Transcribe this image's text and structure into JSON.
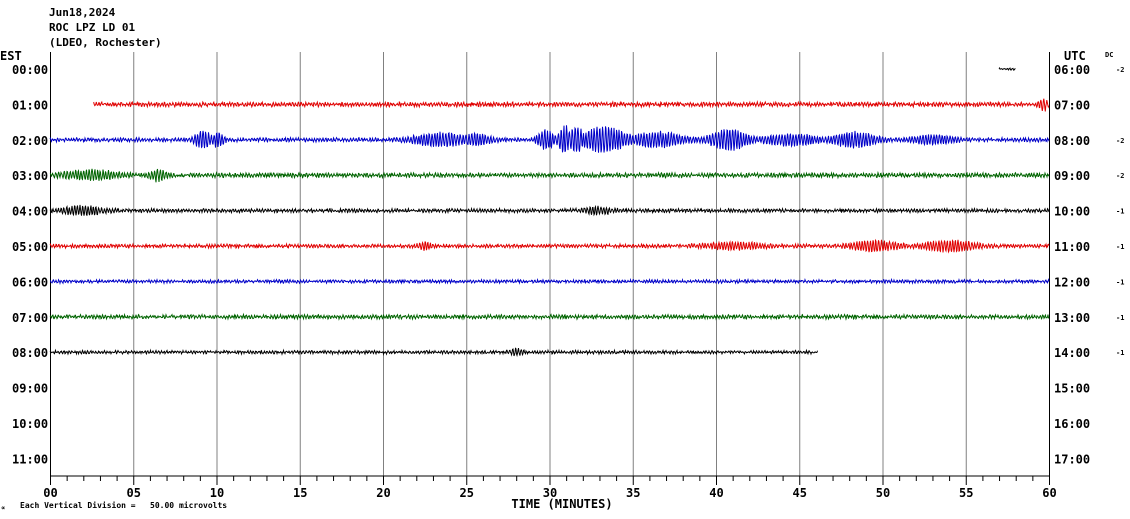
{
  "header": {
    "date": "Jun18,2024",
    "station": "ROC LPZ LD 01",
    "network": "(LDEO, Rochester)",
    "left_tz": "EST",
    "right_tz": "UTC",
    "dc_label": "DC"
  },
  "footer": {
    "xlabel": "TIME (MINUTES)",
    "scale_note": "Each Vertical Division =   50.00 microvolts",
    "corner_mark": "∝"
  },
  "colors": {
    "red": "#e00000",
    "blue": "#0000c8",
    "green": "#006400",
    "black": "#000000",
    "grid": "#808080"
  },
  "chart_data": {
    "type": "line",
    "title": "ROC LPZ LD 01",
    "xlabel": "TIME (MINUTES)",
    "ylabel": "",
    "xlim": [
      0,
      60
    ],
    "x_ticks": [
      "00",
      "05",
      "10",
      "15",
      "20",
      "25",
      "30",
      "35",
      "40",
      "45",
      "50",
      "55",
      "60"
    ],
    "rows": [
      {
        "est": "00:00",
        "utc": "06:00",
        "dc": "-2",
        "color": "black",
        "start": 57,
        "end": 58,
        "amp": 1.0,
        "noise": 0.6,
        "events": []
      },
      {
        "est": "01:00",
        "utc": "07:00",
        "dc": "",
        "color": "red",
        "start": 2.6,
        "end": 60,
        "amp": 2.2,
        "noise": 1.2,
        "events": [
          [
            59.7,
            0.3,
            5
          ]
        ]
      },
      {
        "est": "02:00",
        "utc": "08:00",
        "dc": "-2",
        "color": "blue",
        "start": 0,
        "end": 60,
        "amp": 2.0,
        "noise": 1.0,
        "events": [
          [
            9.2,
            0.6,
            8
          ],
          [
            10.1,
            0.4,
            7
          ],
          [
            23.5,
            2.0,
            6
          ],
          [
            25.6,
            1.0,
            5
          ],
          [
            29.8,
            0.6,
            9
          ],
          [
            30.9,
            0.4,
            14
          ],
          [
            31.6,
            0.6,
            12
          ],
          [
            33.3,
            1.6,
            12
          ],
          [
            36.5,
            1.8,
            7
          ],
          [
            40.8,
            1.3,
            10
          ],
          [
            44.5,
            2.0,
            5
          ],
          [
            48.3,
            1.5,
            7
          ],
          [
            53.0,
            1.5,
            4
          ]
        ]
      },
      {
        "est": "03:00",
        "utc": "09:00",
        "dc": "-2",
        "color": "green",
        "start": 0,
        "end": 60,
        "amp": 2.2,
        "noise": 1.2,
        "events": [
          [
            2.5,
            1.8,
            4
          ],
          [
            6.5,
            0.6,
            5
          ]
        ]
      },
      {
        "est": "04:00",
        "utc": "10:00",
        "dc": "-1",
        "color": "black",
        "start": 0,
        "end": 60,
        "amp": 1.8,
        "noise": 1.0,
        "events": [
          [
            2.0,
            1.5,
            4
          ],
          [
            32.9,
            1.0,
            3
          ]
        ]
      },
      {
        "est": "05:00",
        "utc": "11:00",
        "dc": "-1",
        "color": "red",
        "start": 0,
        "end": 60,
        "amp": 1.8,
        "noise": 1.0,
        "events": [
          [
            22.5,
            0.5,
            3
          ],
          [
            41.0,
            2.0,
            3
          ],
          [
            49.5,
            1.6,
            5
          ],
          [
            54.0,
            1.8,
            5
          ]
        ]
      },
      {
        "est": "06:00",
        "utc": "12:00",
        "dc": "-1",
        "color": "blue",
        "start": 0,
        "end": 60,
        "amp": 1.6,
        "noise": 0.9,
        "events": []
      },
      {
        "est": "07:00",
        "utc": "13:00",
        "dc": "-1",
        "color": "green",
        "start": 0,
        "end": 60,
        "amp": 2.0,
        "noise": 1.1,
        "events": []
      },
      {
        "est": "08:00",
        "utc": "14:00",
        "dc": "-1",
        "color": "black",
        "start": 0,
        "end": 46.1,
        "amp": 1.6,
        "noise": 0.9,
        "events": [
          [
            28.0,
            0.4,
            3
          ]
        ]
      },
      {
        "est": "09:00",
        "utc": "15:00",
        "dc": "",
        "color": "black",
        "start": 0,
        "end": 0,
        "amp": 0,
        "noise": 0,
        "events": []
      },
      {
        "est": "10:00",
        "utc": "16:00",
        "dc": "",
        "color": "black",
        "start": 0,
        "end": 0,
        "amp": 0,
        "noise": 0,
        "events": []
      },
      {
        "est": "11:00",
        "utc": "17:00",
        "dc": "",
        "color": "black",
        "start": 0,
        "end": 0,
        "amp": 0,
        "noise": 0,
        "events": []
      }
    ]
  }
}
